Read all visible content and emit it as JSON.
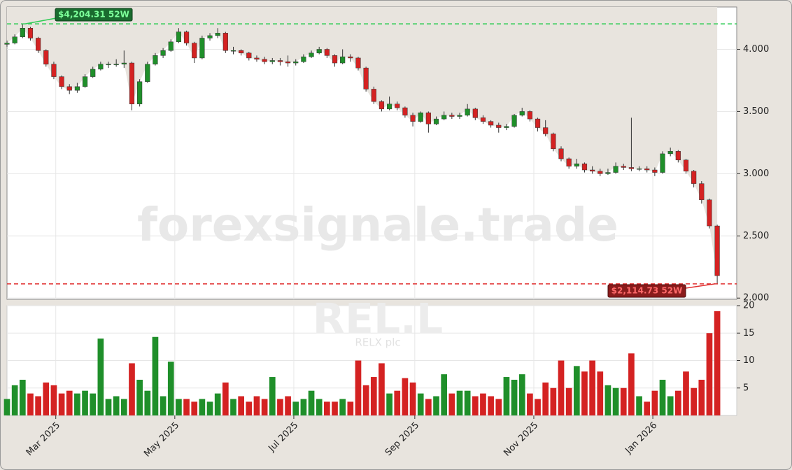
{
  "chart_data": {
    "type": "candlestick",
    "watermark": "forexsignale.trade",
    "symbol": "REL.L",
    "company": "RELX plc",
    "up_color": "#1f8f2a",
    "down_color": "#d42222",
    "grid": true,
    "x": [
      0,
      4,
      8,
      12,
      16,
      20,
      24,
      28,
      32,
      36,
      40,
      44,
      48,
      52,
      56,
      60,
      64,
      68,
      72,
      76,
      80,
      84,
      88,
      92,
      96,
      100,
      104,
      108,
      112,
      116,
      120,
      124,
      128,
      132,
      136,
      140,
      144,
      148,
      152,
      156,
      160,
      164,
      168,
      172,
      176,
      180,
      184,
      188,
      192,
      196,
      200,
      204,
      208,
      212,
      216,
      220,
      224,
      228,
      232,
      236,
      240,
      244,
      248,
      252,
      256,
      260,
      264,
      268,
      272,
      276,
      280,
      284,
      288,
      292,
      296,
      300,
      304,
      308,
      312,
      316,
      320,
      324,
      328,
      332,
      336,
      340,
      344,
      348,
      352,
      356,
      360,
      364
    ],
    "open": [
      4040,
      4050,
      4100,
      4170,
      4090,
      3990,
      3880,
      3780,
      3700,
      3670,
      3700,
      3780,
      3840,
      3880,
      3880,
      3880,
      3890,
      3560,
      3740,
      3880,
      3950,
      3990,
      4060,
      4140,
      4050,
      3930,
      4090,
      4110,
      4130,
      3990,
      3990,
      3970,
      3930,
      3920,
      3900,
      3910,
      3900,
      3890,
      3900,
      3940,
      3970,
      4000,
      3950,
      3890,
      3940,
      3930,
      3850,
      3680,
      3580,
      3520,
      3560,
      3530,
      3470,
      3420,
      3490,
      3400,
      3440,
      3470,
      3460,
      3470,
      3520,
      3450,
      3420,
      3390,
      3370,
      3380,
      3470,
      3500,
      3440,
      3370,
      3320,
      3200,
      3120,
      3060,
      3080,
      3030,
      3020,
      3000,
      3010,
      3060,
      3050,
      3040,
      3040,
      3030,
      3010,
      3160,
      3180,
      3110,
      3020,
      2920,
      2790,
      2580
    ],
    "high": [
      4070,
      4120,
      4204.31,
      4180,
      4100,
      4000,
      3900,
      3790,
      3720,
      3730,
      3800,
      3860,
      3900,
      3900,
      3920,
      3990,
      3900,
      3760,
      3900,
      3970,
      4010,
      4080,
      4170,
      4150,
      4060,
      4110,
      4130,
      4170,
      4140,
      4020,
      4000,
      3980,
      3950,
      3940,
      3930,
      3930,
      3950,
      3920,
      3960,
      3990,
      4020,
      4010,
      3960,
      4000,
      3960,
      3940,
      3860,
      3700,
      3590,
      3620,
      3580,
      3540,
      3490,
      3500,
      3500,
      3460,
      3500,
      3490,
      3490,
      3560,
      3530,
      3470,
      3430,
      3410,
      3400,
      3480,
      3530,
      3510,
      3450,
      3430,
      3330,
      3220,
      3130,
      3120,
      3090,
      3060,
      3040,
      3040,
      3090,
      3080,
      3450,
      3060,
      3060,
      3050,
      3180,
      3210,
      3190,
      3120,
      3030,
      2940,
      2800,
      2590
    ],
    "low": [
      4020,
      4040,
      4090,
      4070,
      3970,
      3860,
      3760,
      3680,
      3640,
      3650,
      3690,
      3770,
      3830,
      3850,
      3860,
      3850,
      3510,
      3540,
      3730,
      3870,
      3930,
      3980,
      4050,
      4030,
      3890,
      3920,
      4070,
      4090,
      3970,
      3960,
      3950,
      3910,
      3900,
      3880,
      3880,
      3870,
      3860,
      3870,
      3890,
      3930,
      3960,
      3930,
      3860,
      3880,
      3900,
      3830,
      3660,
      3560,
      3500,
      3510,
      3510,
      3450,
      3380,
      3410,
      3330,
      3390,
      3430,
      3440,
      3440,
      3460,
      3430,
      3400,
      3370,
      3330,
      3350,
      3370,
      3460,
      3420,
      3340,
      3300,
      3180,
      3100,
      3040,
      3040,
      3010,
      3000,
      2980,
      2990,
      3000,
      3030,
      3020,
      3020,
      3010,
      2980,
      3000,
      3140,
      3090,
      3000,
      2890,
      2760,
      2560,
      2114.73
    ],
    "close": [
      4050,
      4100,
      4170,
      4090,
      3990,
      3880,
      3780,
      3700,
      3670,
      3700,
      3780,
      3840,
      3880,
      3880,
      3880,
      3890,
      3560,
      3740,
      3880,
      3950,
      3990,
      4060,
      4140,
      4050,
      3930,
      4090,
      4110,
      4130,
      3990,
      3990,
      3970,
      3930,
      3920,
      3900,
      3910,
      3900,
      3890,
      3900,
      3940,
      3970,
      4000,
      3950,
      3890,
      3940,
      3930,
      3850,
      3680,
      3580,
      3520,
      3560,
      3530,
      3470,
      3420,
      3490,
      3400,
      3440,
      3470,
      3460,
      3470,
      3520,
      3450,
      3420,
      3390,
      3370,
      3380,
      3470,
      3500,
      3440,
      3370,
      3320,
      3200,
      3120,
      3060,
      3080,
      3030,
      3020,
      3000,
      3010,
      3060,
      3050,
      3040,
      3040,
      3030,
      3010,
      3160,
      3180,
      3110,
      3020,
      2920,
      2790,
      2580,
      2180
    ],
    "volume": [
      3,
      5.5,
      6.5,
      4,
      3.5,
      6,
      5.5,
      4,
      4.5,
      4,
      4.5,
      4,
      14,
      3,
      3.5,
      3,
      9.5,
      6.5,
      4.5,
      14.3,
      3.5,
      9.8,
      3,
      3,
      2.5,
      3,
      2.5,
      4,
      6,
      3,
      3.5,
      2.5,
      3.5,
      3,
      7,
      3,
      3.5,
      2.5,
      3,
      4.5,
      3,
      2.5,
      2.5,
      3,
      2.5,
      10,
      5.5,
      7,
      9.5,
      4,
      4.5,
      6.8,
      6,
      4,
      3,
      3.5,
      7.5,
      4,
      4.5,
      4.5,
      3.5,
      4,
      3.5,
      3,
      7,
      6.5,
      7.5,
      4,
      3,
      6,
      5,
      10,
      5,
      9,
      8,
      10,
      8,
      5.5,
      5,
      5,
      11.3,
      3.5,
      2.5,
      4.5,
      6.5,
      3.5,
      4.5,
      8,
      5,
      6.5,
      15,
      19
    ],
    "xlim": [
      0,
      374
    ],
    "xticks": [
      {
        "value": 25,
        "label": "Mar 2025"
      },
      {
        "value": 86,
        "label": "May 2025"
      },
      {
        "value": 147,
        "label": "Jul 2025"
      },
      {
        "value": 209,
        "label": "Sep 2025"
      },
      {
        "value": 270,
        "label": "Nov 2025"
      },
      {
        "value": 331,
        "label": "Jan 2026"
      }
    ],
    "ylim": [
      1990,
      4340
    ],
    "yticks": [
      {
        "value": 2000,
        "label": "2.000"
      },
      {
        "value": 2500,
        "label": "2.500"
      },
      {
        "value": 3000,
        "label": "3.000"
      },
      {
        "value": 3500,
        "label": "3.500"
      },
      {
        "value": 4000,
        "label": "4.000"
      }
    ],
    "y2lim": [
      0,
      20
    ],
    "y2ticks": [
      5,
      10,
      15,
      20
    ],
    "high_line": {
      "value": 4204.31,
      "label": "$4,204.31 52W",
      "color": "#2ecc55"
    },
    "low_line": {
      "value": 2114.73,
      "label": "$2,114.73 52W",
      "color": "#e03030"
    }
  }
}
